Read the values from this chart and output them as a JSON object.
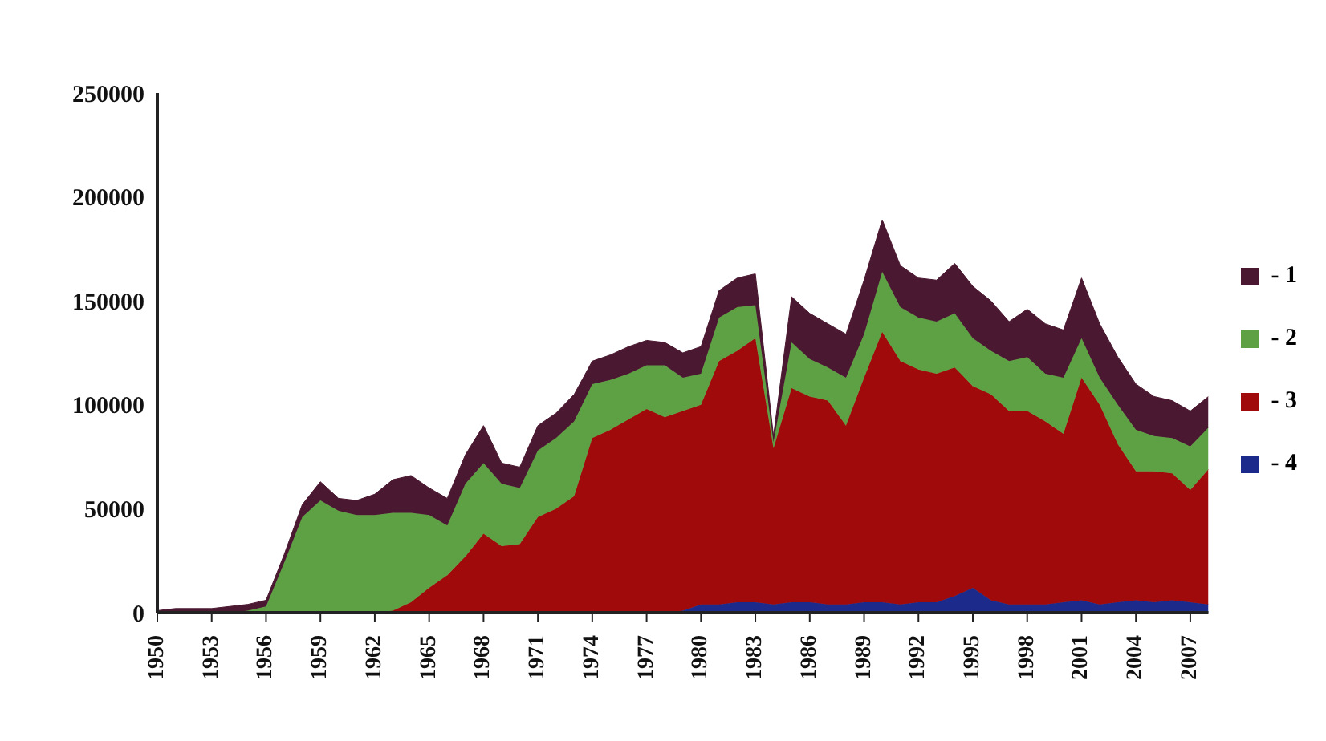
{
  "chart_data": {
    "type": "area",
    "stacked": true,
    "categories": [
      "1950",
      null,
      null,
      "1953",
      null,
      null,
      "1956",
      null,
      null,
      "1959",
      null,
      null,
      "1962",
      null,
      null,
      "1965",
      null,
      null,
      "1968",
      null,
      null,
      "1971",
      null,
      null,
      "1974",
      null,
      null,
      "1977",
      null,
      null,
      "1980",
      null,
      null,
      "1983",
      null,
      null,
      "1986",
      null,
      null,
      "1989",
      null,
      null,
      "1992",
      null,
      null,
      "1995",
      null,
      null,
      "1998",
      null,
      null,
      "2001",
      null,
      null,
      "2004",
      null,
      null,
      "2007",
      null
    ],
    "series": [
      {
        "name": "- 4",
        "color": "#1c2a8c",
        "values": [
          0,
          0,
          0,
          0,
          0,
          0,
          0,
          0,
          0,
          0,
          0,
          0,
          0,
          0,
          0,
          0,
          0,
          0,
          0,
          0,
          0,
          0,
          0,
          0,
          0,
          0,
          0,
          0,
          0,
          1000,
          4000,
          4000,
          5000,
          5000,
          4000,
          5000,
          5000,
          4000,
          4000,
          5000,
          5000,
          4000,
          5000,
          5000,
          8000,
          12000,
          6000,
          4000,
          4000,
          4000,
          5000,
          6000,
          4000,
          5000,
          6000,
          5000,
          6000,
          5000,
          4000
        ]
      },
      {
        "name": "- 3",
        "color": "#a00a0a",
        "values": [
          0,
          0,
          0,
          0,
          0,
          0,
          0,
          0,
          0,
          0,
          0,
          0,
          0,
          1000,
          5000,
          12000,
          18000,
          27000,
          38000,
          32000,
          33000,
          46000,
          50000,
          56000,
          84000,
          88000,
          93000,
          98000,
          94000,
          96000,
          96000,
          117000,
          121000,
          127000,
          75000,
          103000,
          99000,
          98000,
          86000,
          108000,
          130000,
          117000,
          112000,
          110000,
          110000,
          97000,
          99000,
          93000,
          93000,
          88000,
          81000,
          107000,
          96000,
          76000,
          62000,
          63000,
          61000,
          54000,
          65000
        ]
      },
      {
        "name": "- 2",
        "color": "#5ea144",
        "values": [
          0,
          0,
          0,
          0,
          0,
          1000,
          3000,
          24000,
          46000,
          54000,
          49000,
          47000,
          47000,
          47000,
          43000,
          35000,
          24000,
          35000,
          34000,
          30000,
          27000,
          32000,
          34000,
          36000,
          26000,
          24000,
          22000,
          21000,
          25000,
          16000,
          15000,
          21000,
          21000,
          16000,
          3000,
          22000,
          18000,
          16000,
          23000,
          21000,
          29000,
          26000,
          25000,
          25000,
          26000,
          23000,
          21000,
          24000,
          26000,
          23000,
          27000,
          19000,
          13000,
          19000,
          20000,
          17000,
          17000,
          21000,
          20000
        ]
      },
      {
        "name": "- 1",
        "color": "#4a1830",
        "values": [
          1000,
          2000,
          2000,
          2000,
          3000,
          3000,
          3000,
          4000,
          6000,
          9000,
          6000,
          7000,
          10000,
          16000,
          18000,
          13000,
          13000,
          14000,
          18000,
          10000,
          10000,
          12000,
          12000,
          13000,
          11000,
          12000,
          13000,
          12000,
          11000,
          12000,
          13000,
          13000,
          14000,
          15000,
          3000,
          22000,
          22000,
          21000,
          21000,
          26000,
          25000,
          20000,
          19000,
          20000,
          24000,
          25000,
          24000,
          19000,
          23000,
          24000,
          23000,
          29000,
          26000,
          23000,
          22000,
          19000,
          18000,
          17000,
          15000
        ]
      }
    ],
    "ylim": [
      0,
      250000
    ],
    "yticks": [
      0,
      50000,
      100000,
      150000,
      200000,
      250000
    ],
    "grid": false,
    "legend": "right"
  }
}
